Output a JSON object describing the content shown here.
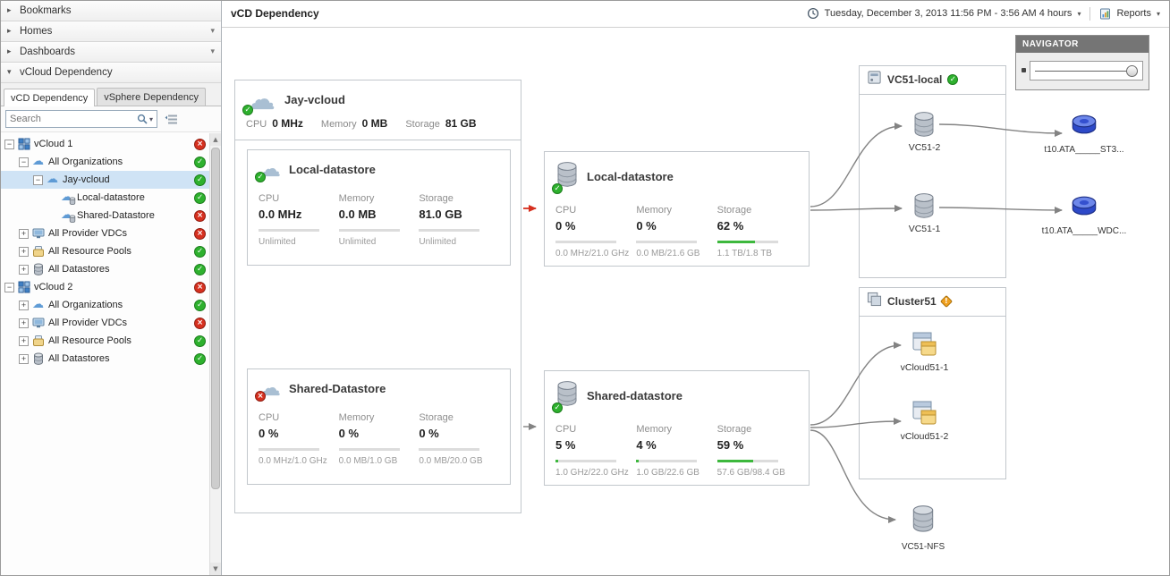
{
  "colors": {
    "status_ok": "#2eb12e",
    "status_error": "#d6301f",
    "status_warning": "#efa01f",
    "bar_fill": "#3db83d",
    "selection": "#cfe3f5",
    "edge": "#838383",
    "edge_alert": "#d6301f"
  },
  "sidebar": {
    "sections": [
      {
        "label": "Bookmarks",
        "state": "collapsed",
        "menu": false
      },
      {
        "label": "Homes",
        "state": "collapsed",
        "menu": true
      },
      {
        "label": "Dashboards",
        "state": "collapsed",
        "menu": true
      },
      {
        "label": "vCloud Dependency",
        "state": "expanded",
        "menu": false
      }
    ],
    "tabs": [
      {
        "label": "vCD Dependency",
        "active": true
      },
      {
        "label": "vSphere Dependency",
        "active": false
      }
    ],
    "search": {
      "placeholder": "Search"
    },
    "tree": [
      {
        "label": "vCloud 1",
        "level": 0,
        "expander": "minus",
        "icon": "vcloud",
        "status": "error",
        "selected": false
      },
      {
        "label": "All Organizations",
        "level": 1,
        "expander": "minus",
        "icon": "org",
        "status": "ok",
        "selected": false
      },
      {
        "label": "Jay-vcloud",
        "level": 2,
        "expander": "minus",
        "icon": "org",
        "status": "ok",
        "selected": true
      },
      {
        "label": "Local-datastore",
        "level": 3,
        "expander": "none",
        "icon": "orgds",
        "status": "ok",
        "selected": false
      },
      {
        "label": "Shared-Datastore",
        "level": 3,
        "expander": "none",
        "icon": "orgds",
        "status": "error",
        "selected": false
      },
      {
        "label": "All Provider VDCs",
        "level": 1,
        "expander": "plus",
        "icon": "pvdc",
        "status": "error",
        "selected": false
      },
      {
        "label": "All Resource Pools",
        "level": 1,
        "expander": "plus",
        "icon": "rp",
        "status": "ok",
        "selected": false
      },
      {
        "label": "All Datastores",
        "level": 1,
        "expander": "plus",
        "icon": "ds",
        "status": "ok",
        "selected": false
      },
      {
        "label": "vCloud 2",
        "level": 0,
        "expander": "minus",
        "icon": "vcloud",
        "status": "error",
        "selected": false
      },
      {
        "label": "All Organizations",
        "level": 1,
        "expander": "plus",
        "icon": "org",
        "status": "ok",
        "selected": false
      },
      {
        "label": "All Provider VDCs",
        "level": 1,
        "expander": "plus",
        "icon": "pvdc",
        "status": "error",
        "selected": false
      },
      {
        "label": "All Resource Pools",
        "level": 1,
        "expander": "plus",
        "icon": "rp",
        "status": "ok",
        "selected": false
      },
      {
        "label": "All Datastores",
        "level": 1,
        "expander": "plus",
        "icon": "ds",
        "status": "ok",
        "selected": false
      }
    ]
  },
  "header": {
    "title": "vCD Dependency",
    "timerange": "Tuesday, December 3, 2013 11:56 PM - 3:56 AM 4 hours",
    "reports_label": "Reports"
  },
  "navigator": {
    "title": "NAVIGATOR"
  },
  "diagram": {
    "vcloud": {
      "title": "Jay-vcloud",
      "status": "ok",
      "metrics": [
        {
          "label": "CPU",
          "value": "0 MHz"
        },
        {
          "label": "Memory",
          "value": "0 MB"
        },
        {
          "label": "Storage",
          "value": "81 GB"
        }
      ],
      "org_datastores": [
        {
          "title": "Local-datastore",
          "status": "ok",
          "columns": [
            {
              "label": "CPU",
              "value": "0.0 MHz",
              "bar": 0,
              "detail": "Unlimited"
            },
            {
              "label": "Memory",
              "value": "0.0 MB",
              "bar": 0,
              "detail": "Unlimited"
            },
            {
              "label": "Storage",
              "value": "81.0 GB",
              "bar": 0,
              "detail": "Unlimited"
            }
          ]
        },
        {
          "title": "Shared-Datastore",
          "status": "error",
          "columns": [
            {
              "label": "CPU",
              "value": "0 %",
              "bar": 0,
              "detail": "0.0 MHz/1.0 GHz"
            },
            {
              "label": "Memory",
              "value": "0 %",
              "bar": 0,
              "detail": "0.0 MB/1.0 GB"
            },
            {
              "label": "Storage",
              "value": "0 %",
              "bar": 0,
              "detail": "0.0 MB/20.0 GB"
            }
          ]
        }
      ]
    },
    "datastores": [
      {
        "title": "Local-datastore",
        "status": "ok",
        "columns": [
          {
            "label": "CPU",
            "value": "0 %",
            "bar": 0,
            "detail": "0.0 MHz/21.0 GHz"
          },
          {
            "label": "Memory",
            "value": "0 %",
            "bar": 0,
            "detail": "0.0 MB/21.6 GB"
          },
          {
            "label": "Storage",
            "value": "62 %",
            "bar": 62,
            "detail": "1.1 TB/1.8 TB"
          }
        ]
      },
      {
        "title": "Shared-datastore",
        "status": "ok",
        "columns": [
          {
            "label": "CPU",
            "value": "5 %",
            "bar": 5,
            "detail": "1.0 GHz/22.0 GHz"
          },
          {
            "label": "Memory",
            "value": "4 %",
            "bar": 4,
            "detail": "1.0 GB/22.6 GB"
          },
          {
            "label": "Storage",
            "value": "59 %",
            "bar": 59,
            "detail": "57.6 GB/98.4 GB"
          }
        ]
      }
    ],
    "hosts": [
      {
        "title": "VC51-local",
        "status": "ok",
        "nodes": [
          {
            "label": "VC51-2",
            "icon": "datastore"
          },
          {
            "label": "VC51-1",
            "icon": "datastore"
          }
        ]
      },
      {
        "title": "Cluster51",
        "status": "warning",
        "nodes": [
          {
            "label": "vCloud51-1",
            "icon": "vapp"
          },
          {
            "label": "vCloud51-2",
            "icon": "vapp"
          }
        ]
      }
    ],
    "disks": [
      {
        "label": "t10.ATA_____ST3..."
      },
      {
        "label": "t10.ATA_____WDC..."
      }
    ],
    "nfs": {
      "label": "VC51-NFS"
    }
  }
}
